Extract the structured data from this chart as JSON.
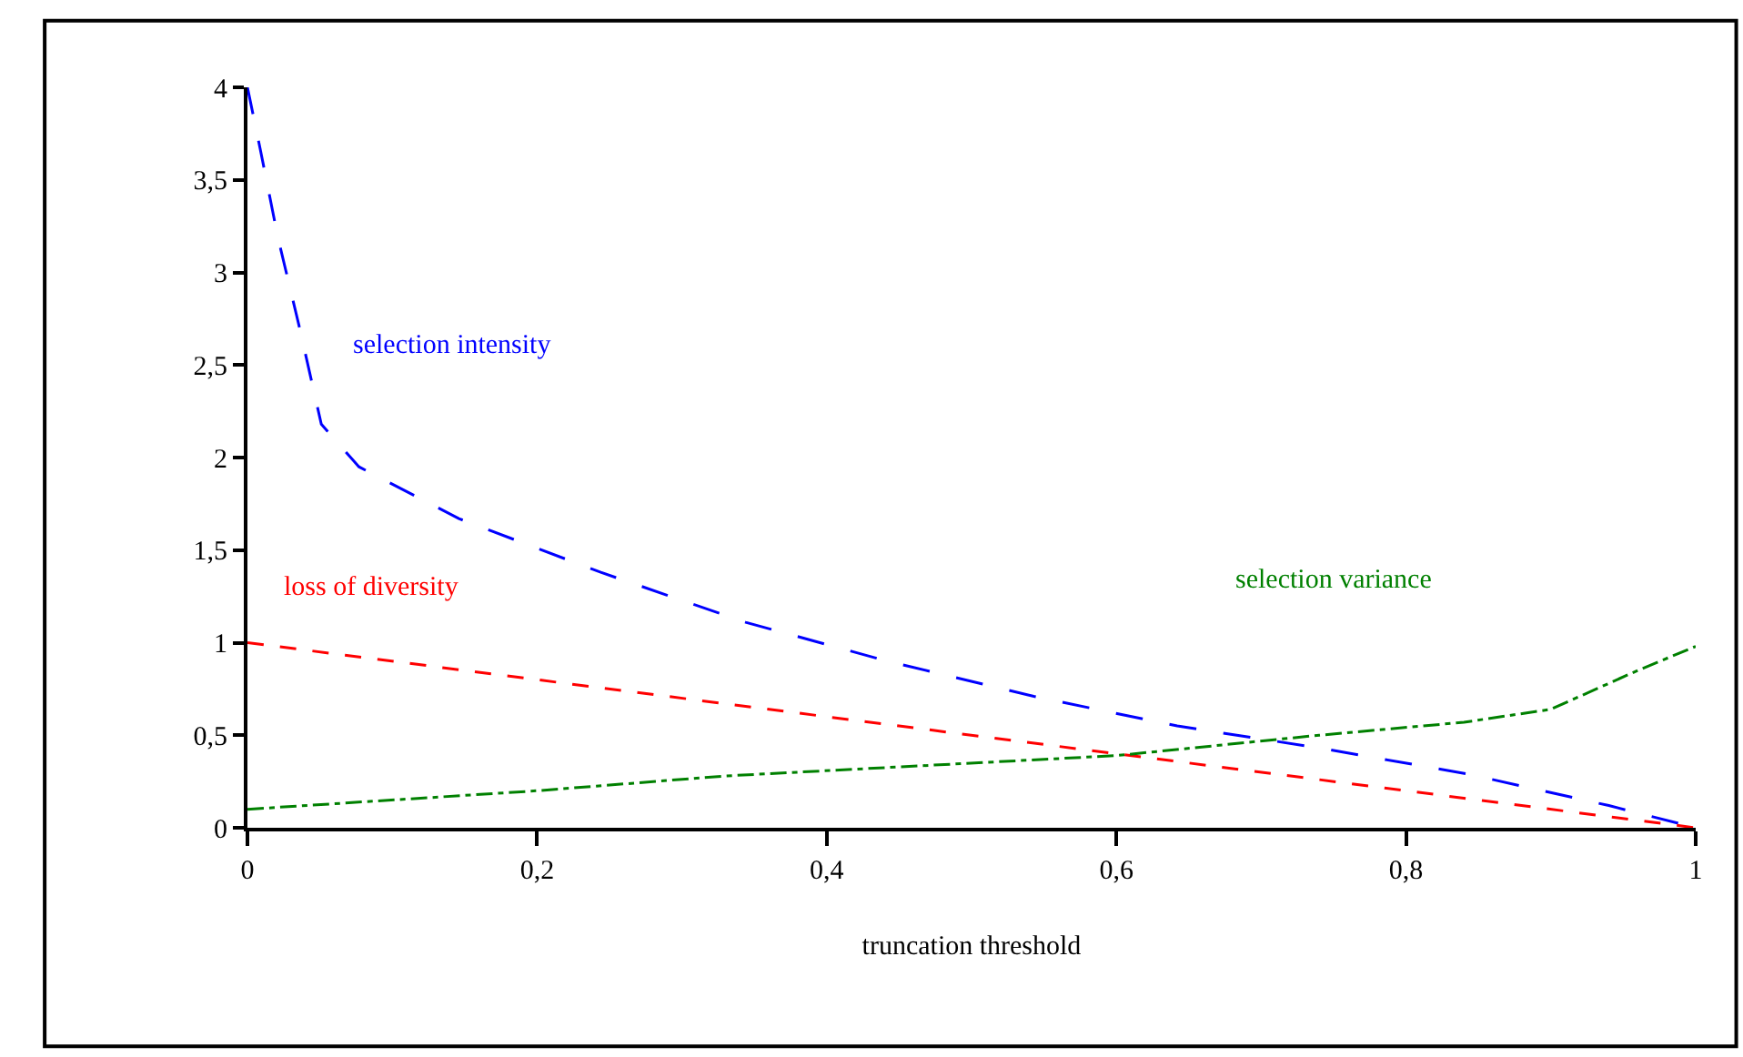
{
  "chart_data": {
    "type": "line",
    "xlabel": "truncation threshold",
    "xlim": [
      0,
      1
    ],
    "xticks": [
      0,
      {
        "value": 0.2,
        "label": "0,2"
      },
      {
        "value": 0.4,
        "label": "0,4"
      },
      {
        "value": 0.6,
        "label": "0,6"
      },
      {
        "value": 0.8,
        "label": "0,8"
      },
      1
    ],
    "ylim": [
      0,
      4
    ],
    "yticks": [
      0,
      {
        "value": 0.5,
        "label": "0,5"
      },
      1,
      {
        "value": 1.5,
        "label": "1,5"
      },
      2,
      {
        "value": 2.5,
        "label": "2,5"
      },
      3,
      {
        "value": 3.5,
        "label": "3,5"
      },
      4
    ],
    "legend": false,
    "marker": "none",
    "series": [
      {
        "name": "selection intensity",
        "color": "#0000ff",
        "line_style": "dashed",
        "x": [
          0,
          0.009,
          0.021,
          0.036,
          0.051,
          0.077,
          0.146,
          0.244,
          0.344,
          0.442,
          0.543,
          0.642,
          0.741,
          0.843,
          0.94,
          1
        ],
        "values": [
          4,
          3.66,
          3.19,
          2.7,
          2.18,
          1.95,
          1.67,
          1.38,
          1.11,
          0.9,
          0.71,
          0.55,
          0.43,
          0.29,
          0.12,
          0
        ]
      },
      {
        "name": "loss of diversity",
        "color": "#ff0000",
        "line_style": "dotted",
        "x": [
          0,
          0.2,
          0.4,
          0.6,
          0.8,
          1
        ],
        "values": [
          1,
          0.8,
          0.6,
          0.4,
          0.2,
          0
        ]
      },
      {
        "name": "selection variance",
        "color": "#008000",
        "line_style": "dashdot",
        "x": [
          0,
          0.2,
          0.33,
          0.6,
          0.74,
          0.84,
          0.9,
          0.96,
          1
        ],
        "values": [
          0.1,
          0.2,
          0.28,
          0.39,
          0.5,
          0.57,
          0.64,
          0.85,
          0.98
        ]
      }
    ]
  }
}
